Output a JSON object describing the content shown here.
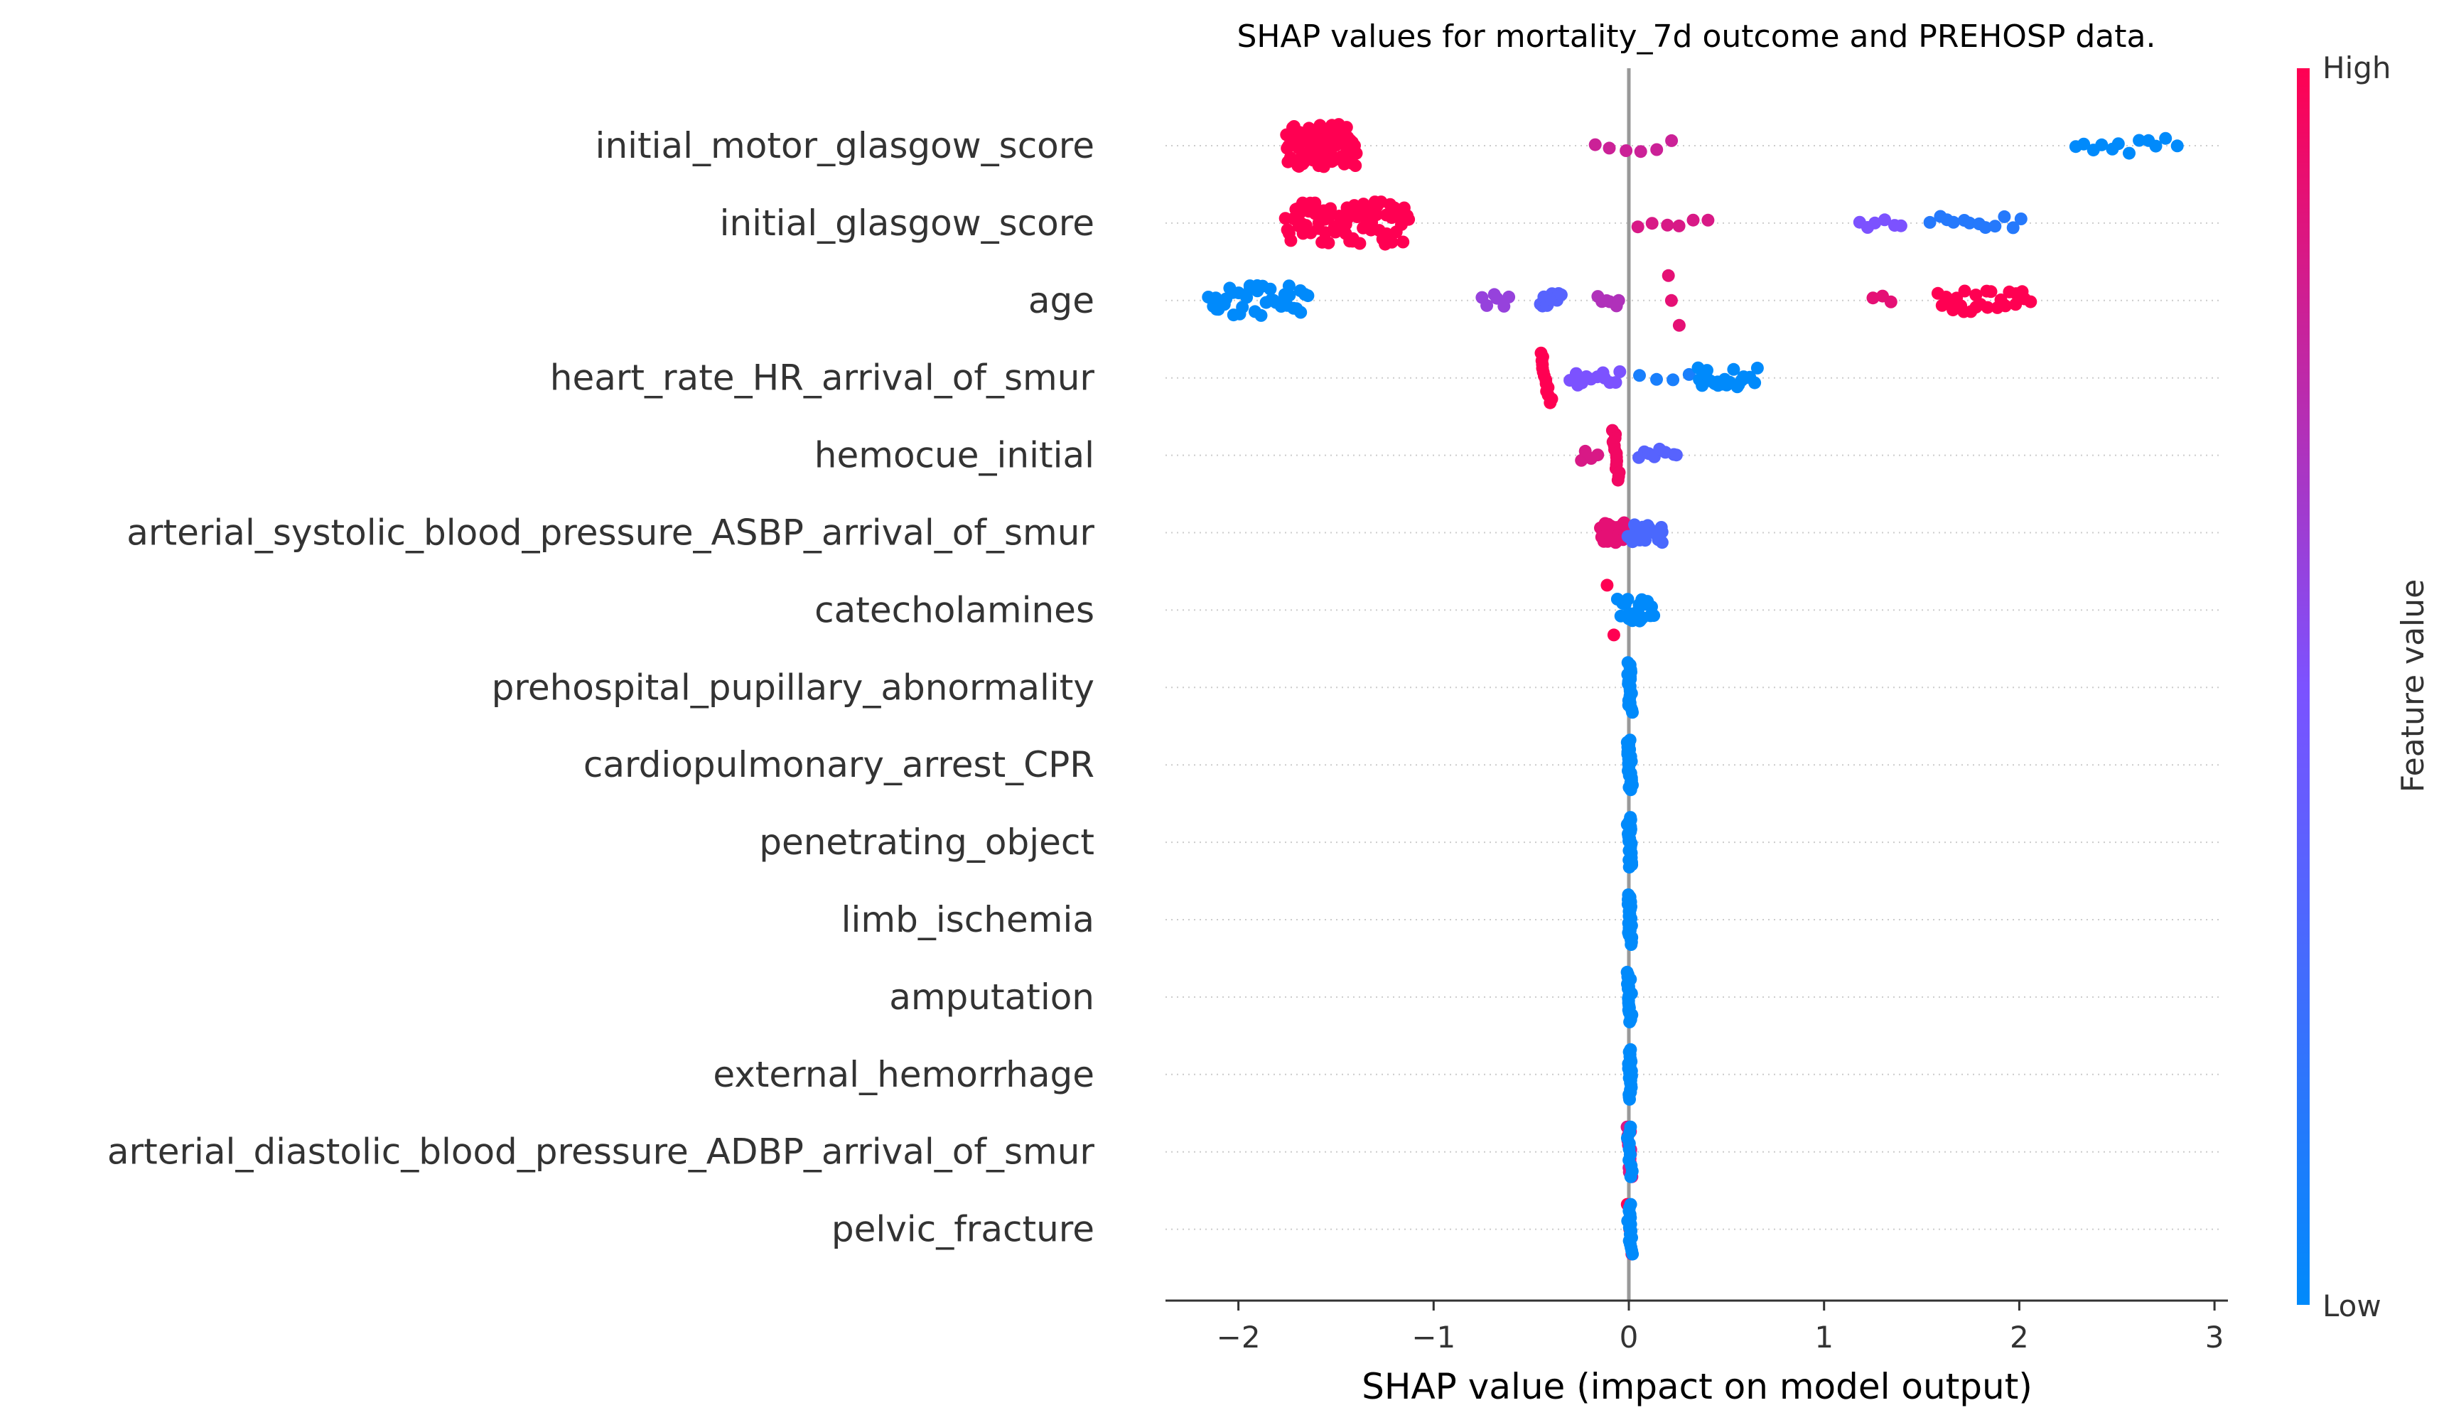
{
  "chart_data": {
    "type": "scatter",
    "title": "SHAP values for mortality_7d outcome and PREHOSP data.",
    "xlabel": "SHAP value (impact on model output)",
    "ylabel": "",
    "xlim": [
      -2.4,
      3.05
    ],
    "x_ticks": [
      -2,
      -1,
      0,
      1,
      2,
      3
    ],
    "x_tick_labels": [
      "−2",
      "−1",
      "0",
      "1",
      "2",
      "3"
    ],
    "grid": "horizontal dotted row lines",
    "zero_line": true,
    "colorbar": {
      "title": "Feature value",
      "high_label": "High",
      "low_label": "Low",
      "low_color": "#008afb",
      "high_color": "#ff0052"
    },
    "features": [
      {
        "name": "initial_motor_glasgow_score",
        "groups": [
          {
            "lo": -1.75,
            "hi": -1.4,
            "n": 85,
            "c": 1.0
          },
          {
            "lo": -0.18,
            "hi": 0.22,
            "n": 6,
            "c": 0.8
          },
          {
            "lo": 2.28,
            "hi": 2.8,
            "n": 12,
            "c": 0.0
          }
        ]
      },
      {
        "name": "initial_glasgow_score",
        "groups": [
          {
            "lo": -1.75,
            "hi": -1.12,
            "n": 85,
            "c": 1.0
          },
          {
            "lo": 0.05,
            "hi": 0.4,
            "n": 6,
            "c": 0.85
          },
          {
            "lo": 1.18,
            "hi": 1.4,
            "n": 6,
            "c": 0.5
          },
          {
            "lo": 1.55,
            "hi": 2.0,
            "n": 12,
            "c": 0.15
          }
        ]
      },
      {
        "name": "age",
        "groups": [
          {
            "lo": -2.15,
            "hi": -1.65,
            "n": 38,
            "c": 0.0
          },
          {
            "lo": -0.75,
            "hi": -0.62,
            "n": 6,
            "c": 0.6
          },
          {
            "lo": -0.45,
            "hi": -0.35,
            "n": 16,
            "c": 0.35
          },
          {
            "lo": -0.15,
            "hi": -0.05,
            "n": 6,
            "c": 0.7
          },
          {
            "lo": 0.2,
            "hi": 0.25,
            "n": 3,
            "c": 0.9
          },
          {
            "lo": 1.25,
            "hi": 1.35,
            "n": 3,
            "c": 0.9
          },
          {
            "lo": 1.58,
            "hi": 2.05,
            "n": 26,
            "c": 1.0
          }
        ]
      },
      {
        "name": "heart_rate_HR_arrival_of_smur",
        "groups": [
          {
            "lo": -0.45,
            "hi": -0.4,
            "n": 14,
            "c": 1.0
          },
          {
            "lo": -0.3,
            "hi": -0.05,
            "n": 12,
            "c": 0.5
          },
          {
            "lo": 0.05,
            "hi": 0.3,
            "n": 4,
            "c": 0.1
          },
          {
            "lo": 0.35,
            "hi": 0.65,
            "n": 22,
            "c": 0.0
          }
        ]
      },
      {
        "name": "hemocue_initial",
        "groups": [
          {
            "lo": -0.25,
            "hi": -0.15,
            "n": 4,
            "c": 0.85
          },
          {
            "lo": -0.08,
            "hi": -0.05,
            "n": 14,
            "c": 0.95
          },
          {
            "lo": 0.05,
            "hi": 0.25,
            "n": 8,
            "c": 0.35
          }
        ]
      },
      {
        "name": "arterial_systolic_blood_pressure_ASBP_arrival_of_smur",
        "groups": [
          {
            "lo": -0.15,
            "hi": -0.02,
            "n": 22,
            "c": 0.9
          },
          {
            "lo": 0.0,
            "hi": 0.18,
            "n": 20,
            "c": 0.3
          }
        ]
      },
      {
        "name": "catecholamines",
        "groups": [
          {
            "lo": -0.12,
            "hi": -0.08,
            "n": 2,
            "c": 1.0
          },
          {
            "lo": -0.05,
            "hi": 0.12,
            "n": 24,
            "c": 0.0
          }
        ]
      },
      {
        "name": "prehospital_pupillary_abnormality",
        "groups": [
          {
            "lo": 0.0,
            "hi": 0.01,
            "n": 22,
            "c": 0.0
          }
        ]
      },
      {
        "name": "cardiopulmonary_arrest_CPR",
        "groups": [
          {
            "lo": 0.0,
            "hi": 0.01,
            "n": 22,
            "c": 0.0
          }
        ]
      },
      {
        "name": "penetrating_object",
        "groups": [
          {
            "lo": 0.0,
            "hi": 0.01,
            "n": 22,
            "c": 0.0
          }
        ]
      },
      {
        "name": "limb_ischemia",
        "groups": [
          {
            "lo": 0.0,
            "hi": 0.01,
            "n": 22,
            "c": 0.0
          }
        ]
      },
      {
        "name": "amputation",
        "groups": [
          {
            "lo": 0.0,
            "hi": 0.01,
            "n": 22,
            "c": 0.0
          }
        ]
      },
      {
        "name": "external_hemorrhage",
        "groups": [
          {
            "lo": 0.0,
            "hi": 0.01,
            "n": 22,
            "c": 0.0
          }
        ]
      },
      {
        "name": "arterial_diastolic_blood_pressure_ADBP_arrival_of_smur",
        "groups": [
          {
            "lo": 0.0,
            "hi": 0.01,
            "n": 12,
            "c": 0.85
          },
          {
            "lo": 0.0,
            "hi": 0.01,
            "n": 10,
            "c": 0.0
          }
        ]
      },
      {
        "name": "pelvic_fracture",
        "groups": [
          {
            "lo": 0.0,
            "hi": 0.01,
            "n": 3,
            "c": 1.0
          },
          {
            "lo": 0.0,
            "hi": 0.01,
            "n": 16,
            "c": 0.0
          }
        ]
      }
    ]
  }
}
